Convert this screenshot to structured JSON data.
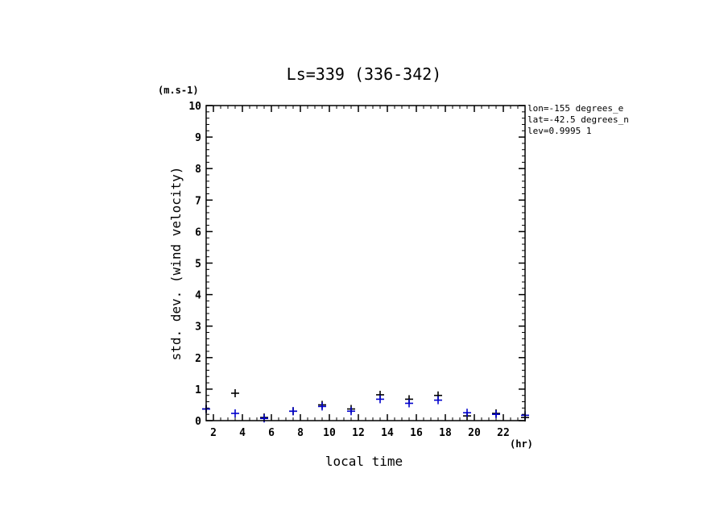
{
  "chart_data": {
    "type": "scatter",
    "title": "Ls=339 (336-342)",
    "xlabel": "local time",
    "ylabel": "std. dev. (wind velocity)",
    "x_unit": "(hr)",
    "y_unit": "(m.s-1)",
    "xlim": [
      1.5,
      23.5
    ],
    "ylim": [
      0,
      10
    ],
    "x_ticks": [
      "2",
      "4",
      "6",
      "8",
      "10",
      "12",
      "14",
      "16",
      "18",
      "20",
      "22"
    ],
    "x_tick_values": [
      2,
      4,
      6,
      8,
      10,
      12,
      14,
      16,
      18,
      20,
      22
    ],
    "y_ticks": [
      "0",
      "1",
      "2",
      "3",
      "4",
      "5",
      "6",
      "7",
      "8",
      "9",
      "10"
    ],
    "y_tick_values": [
      0,
      1,
      2,
      3,
      4,
      5,
      6,
      7,
      8,
      9,
      10
    ],
    "annotations": [
      "lon=-155 degrees_e",
      "lat=-42.5 degrees_n",
      "lev=0.9995 1"
    ],
    "series": [
      {
        "color": "#000000",
        "marker": "plus",
        "x": [
          1.5,
          3.5,
          5.5,
          7.5,
          9.5,
          11.5,
          13.5,
          15.5,
          17.5,
          19.5,
          21.5,
          23.5
        ],
        "y": [
          0.37,
          0.87,
          0.1,
          0.3,
          0.5,
          0.37,
          0.82,
          0.68,
          0.8,
          0.15,
          0.23,
          0.1
        ]
      },
      {
        "color": "#0000cc",
        "marker": "plus",
        "x": [
          1.5,
          3.5,
          5.5,
          7.5,
          9.5,
          11.5,
          13.5,
          15.5,
          17.5,
          19.5,
          21.5,
          23.5
        ],
        "y": [
          0.37,
          0.23,
          0.07,
          0.3,
          0.45,
          0.3,
          0.68,
          0.55,
          0.65,
          0.25,
          0.2,
          0.17
        ]
      }
    ]
  }
}
